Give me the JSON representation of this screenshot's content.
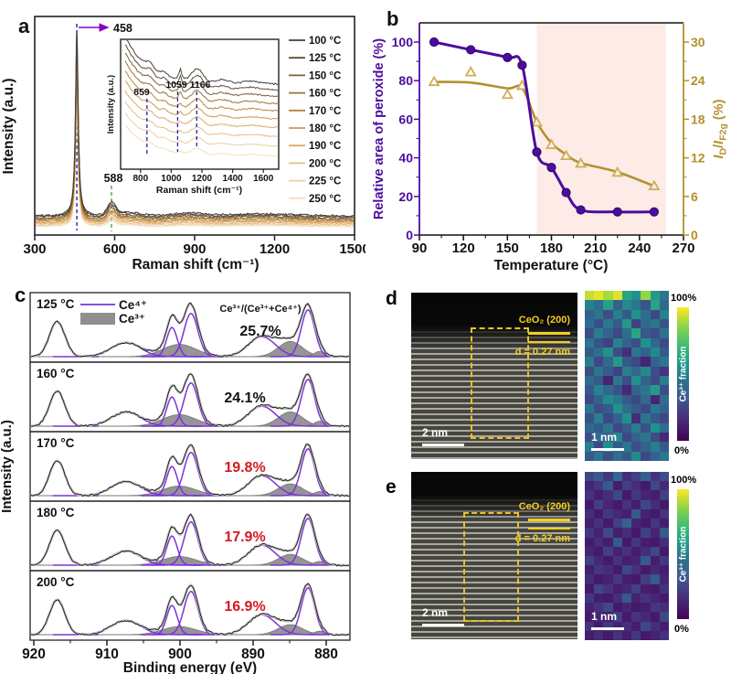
{
  "panel_a": {
    "label": "a"
  },
  "panel_b": {
    "label": "b",
    "xlabel": "Temperature (°C)",
    "ylabel_left": "Relative area of peroxide (%)",
    "ylabel_right_parts": [
      [
        "I",
        "i"
      ],
      [
        "D",
        "s"
      ],
      [
        "/",
        "n"
      ],
      [
        "I",
        "i"
      ],
      [
        "F2g",
        "s"
      ],
      [
        " (%)",
        "n"
      ]
    ]
  },
  "panel_c": {
    "label": "c"
  },
  "panel_d": {
    "label": "d",
    "tem": {
      "material_label": "CeO₂ (200)",
      "d_spacing": "d = 0.27 nm",
      "scalebar": "2 nm"
    },
    "map": {
      "scalebar": "1 nm",
      "cbar_top": "100%",
      "cbar_bottom": "0%",
      "cbar_label": "Ce³⁺ fraction"
    }
  },
  "panel_e": {
    "label": "e",
    "tem": {
      "material_label": "CeO₂ (200)",
      "d_spacing": "d = 0.27 nm",
      "scalebar": "2 nm"
    },
    "map": {
      "scalebar": "1 nm",
      "cbar_top": "100%",
      "cbar_bottom": "0%",
      "cbar_label": "Ce³⁺ fraction"
    }
  },
  "colors": {
    "purple": "#4c0d9e",
    "purple_dark": "#2f0663",
    "gold": "#b3912c",
    "gold_light": "#cfae55",
    "pink_region": "#fcebe7",
    "navy_dash": "#26269c",
    "green_dash": "#3aa043",
    "arrow_purple": "#8a00c4",
    "ce4_line": "#7d33d9",
    "ce3_fill": "#8f8f8f",
    "envelope": "#c3c3c3",
    "red_pct": "#d51920",
    "black": "#111111"
  },
  "chart_data": [
    {
      "id": "a",
      "type": "line",
      "title": "Raman spectra of CeO2 at increasing temperature",
      "xlabel": "Raman shift (cm⁻¹)",
      "ylabel": "Intensity (a.u.)",
      "xlim": [
        300,
        1500
      ],
      "xticks": [
        300,
        600,
        900,
        1200,
        1500
      ],
      "peak_annotations": [
        {
          "value": "458"
        },
        {
          "value": "588"
        }
      ],
      "series": [
        {
          "label": "100 °C",
          "color": "#45413a"
        },
        {
          "label": "125 °C",
          "color": "#5e4d39"
        },
        {
          "label": "150 °C",
          "color": "#7d603c"
        },
        {
          "label": "160 °C",
          "color": "#99723c"
        },
        {
          "label": "170 °C",
          "color": "#b5853d"
        },
        {
          "label": "180 °C",
          "color": "#cd9950"
        },
        {
          "label": "190 °C",
          "color": "#dcab67"
        },
        {
          "label": "200 °C",
          "color": "#e8bd85"
        },
        {
          "label": "225 °C",
          "color": "#efcda1"
        },
        {
          "label": "250 °C",
          "color": "#f4debd"
        }
      ],
      "inset": {
        "xlabel": "Raman shift (cm⁻¹)",
        "ylabel": "Intensity (a.u.)",
        "xlim": [
          700,
          1700
        ],
        "xticks": [
          800,
          1000,
          1200,
          1400,
          1600
        ],
        "peak_annotations": [
          {
            "value": "859"
          },
          {
            "value": "1059"
          },
          {
            "value": "1166"
          }
        ]
      }
    },
    {
      "id": "b",
      "type": "line",
      "xlabel": "Temperature (°C)",
      "xlim": [
        90,
        270
      ],
      "xticks": [
        90,
        120,
        150,
        180,
        210,
        240,
        270
      ],
      "ylim_left": [
        0,
        110
      ],
      "yticks_left": [
        0,
        20,
        40,
        60,
        80,
        100
      ],
      "ylim_right": [
        0,
        33
      ],
      "yticks_right": [
        0,
        6,
        12,
        18,
        24,
        30
      ],
      "shaded_region_x": [
        170,
        258
      ],
      "x": [
        100,
        125,
        150,
        160,
        170,
        180,
        190,
        200,
        225,
        250
      ],
      "series": [
        {
          "name": "Relative area of peroxide (%)",
          "axis": "left",
          "marker": "circle",
          "values": [
            100,
            96,
            92,
            88,
            43,
            35,
            22,
            13,
            12,
            12
          ],
          "line_values": [
            100,
            96,
            92,
            88,
            43,
            35,
            22,
            13,
            12,
            12
          ]
        },
        {
          "name": "ID/IF2g (%)",
          "axis": "right",
          "marker": "triangle-open",
          "values": [
            23.8,
            25.3,
            21.8,
            23.2,
            17.5,
            14.0,
            12.3,
            11.1,
            9.7,
            7.6
          ],
          "line_values": [
            23.8,
            23.7,
            22.8,
            22.9,
            17.6,
            14.3,
            12.5,
            11.2,
            9.8,
            7.6
          ]
        }
      ]
    },
    {
      "id": "c",
      "type": "area",
      "xlabel": "Binding energy (eV)",
      "ylabel": "Intensity (a.u.)",
      "xlim": [
        920.5,
        876.5
      ],
      "xticks": [
        920,
        910,
        900,
        890,
        880
      ],
      "legend": {
        "ce4": "Ce⁴⁺",
        "ce3": "Ce³⁺"
      },
      "ratio_label": "Ce³⁺/(Ce³⁺+Ce⁴⁺)",
      "components": {
        "ce4_peaks": [
          {
            "center": 916.8,
            "sigma": 1.05,
            "height": 0.6
          },
          {
            "center": 907.4,
            "sigma": 2.0,
            "height": 0.24
          },
          {
            "center": 901.1,
            "sigma": 0.72,
            "height": 0.5
          },
          {
            "center": 898.5,
            "sigma": 0.95,
            "height": 0.74
          },
          {
            "center": 888.8,
            "sigma": 1.85,
            "height": 0.34
          },
          {
            "center": 882.5,
            "sigma": 0.92,
            "height": 0.8
          }
        ],
        "ce3_peaks": [
          {
            "center": 900.1,
            "sigma": 2.3,
            "height": 0.21
          },
          {
            "center": 884.9,
            "sigma": 1.65,
            "height": 0.26
          },
          {
            "center": 880.9,
            "sigma": 0.75,
            "height": 0.09
          }
        ]
      },
      "panels": [
        {
          "temp": "125 °C",
          "ratio": "25.7%",
          "ratio_color": "#111111",
          "ce3_scale": 1.0
        },
        {
          "temp": "160 °C",
          "ratio": "24.1%",
          "ratio_color": "#111111",
          "ce3_scale": 0.94
        },
        {
          "temp": "170 °C",
          "ratio": "19.8%",
          "ratio_color": "#d51920",
          "ce3_scale": 0.78
        },
        {
          "temp": "180 °C",
          "ratio": "17.9%",
          "ratio_color": "#d51920",
          "ce3_scale": 0.71
        },
        {
          "temp": "200 °C",
          "ratio": "16.9%",
          "ratio_color": "#d51920",
          "ce3_scale": 0.66
        }
      ]
    },
    {
      "id": "d_map",
      "type": "heatmap",
      "units": "Ce³⁺ fraction (%)",
      "rows": 18,
      "cols": 9,
      "values": [
        [
          92,
          97,
          88,
          96,
          62,
          55,
          85,
          58,
          45
        ],
        [
          50,
          42,
          60,
          38,
          52,
          45,
          33,
          62,
          40
        ],
        [
          38,
          45,
          30,
          48,
          35,
          55,
          42,
          28,
          50
        ],
        [
          42,
          30,
          46,
          35,
          58,
          25,
          40,
          45,
          32
        ],
        [
          30,
          48,
          38,
          28,
          42,
          62,
          35,
          30,
          44
        ],
        [
          45,
          32,
          25,
          50,
          38,
          30,
          55,
          40,
          28
        ],
        [
          35,
          42,
          55,
          30,
          18,
          45,
          38,
          52,
          35
        ],
        [
          48,
          28,
          40,
          58,
          35,
          28,
          15,
          38,
          45
        ],
        [
          30,
          45,
          35,
          25,
          48,
          40,
          52,
          30,
          20
        ],
        [
          42,
          35,
          15,
          45,
          30,
          55,
          38,
          28,
          48
        ],
        [
          35,
          50,
          40,
          32,
          16,
          38,
          45,
          58,
          30
        ],
        [
          28,
          38,
          52,
          45,
          35,
          28,
          40,
          15,
          42
        ],
        [
          45,
          30,
          35,
          55,
          42,
          35,
          28,
          45,
          38
        ],
        [
          32,
          48,
          28,
          38,
          55,
          18,
          45,
          35,
          28
        ],
        [
          40,
          35,
          45,
          28,
          35,
          48,
          32,
          55,
          42
        ],
        [
          30,
          42,
          38,
          52,
          28,
          38,
          45,
          30,
          16
        ],
        [
          48,
          28,
          55,
          35,
          45,
          30,
          38,
          48,
          35
        ],
        [
          35,
          45,
          30,
          42,
          35,
          52,
          28,
          38,
          45
        ]
      ]
    },
    {
      "id": "e_map",
      "type": "heatmap",
      "units": "Ce³⁺ fraction (%)",
      "rows": 18,
      "cols": 9,
      "values": [
        [
          28,
          35,
          22,
          40,
          18,
          25,
          38,
          20,
          30
        ],
        [
          15,
          22,
          35,
          12,
          25,
          18,
          10,
          28,
          16
        ],
        [
          20,
          12,
          18,
          28,
          10,
          22,
          15,
          12,
          25
        ],
        [
          10,
          25,
          15,
          10,
          20,
          12,
          28,
          18,
          10
        ],
        [
          18,
          10,
          22,
          16,
          12,
          35,
          14,
          10,
          20
        ],
        [
          12,
          20,
          10,
          25,
          38,
          15,
          10,
          22,
          12
        ],
        [
          22,
          14,
          28,
          12,
          18,
          10,
          25,
          15,
          35
        ],
        [
          10,
          18,
          12,
          35,
          10,
          22,
          12,
          10,
          18
        ],
        [
          15,
          10,
          25,
          14,
          20,
          12,
          18,
          28,
          10
        ],
        [
          25,
          16,
          10,
          20,
          12,
          15,
          35,
          12,
          22
        ],
        [
          12,
          22,
          18,
          10,
          28,
          20,
          10,
          16,
          12
        ],
        [
          18,
          10,
          14,
          22,
          12,
          10,
          24,
          35,
          15
        ],
        [
          10,
          28,
          20,
          12,
          16,
          25,
          12,
          10,
          20
        ],
        [
          22,
          12,
          10,
          18,
          35,
          14,
          20,
          15,
          10
        ],
        [
          14,
          20,
          28,
          10,
          15,
          10,
          12,
          22,
          18
        ],
        [
          10,
          15,
          12,
          25,
          10,
          20,
          16,
          10,
          28
        ],
        [
          20,
          10,
          22,
          14,
          18,
          12,
          28,
          18,
          12
        ],
        [
          12,
          18,
          10,
          20,
          12,
          22,
          10,
          14,
          20
        ]
      ]
    }
  ]
}
